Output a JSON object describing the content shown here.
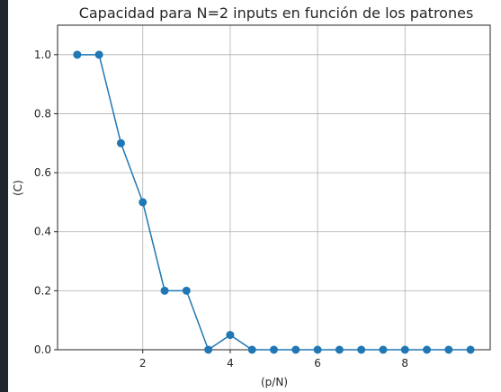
{
  "chart_data": {
    "type": "line",
    "title": "Capacidad para N=2 inputs en función de los patrones",
    "xlabel": "(p/N)",
    "ylabel": "(C)",
    "xlim": [
      0.05,
      9.95
    ],
    "ylim": [
      0,
      1.1
    ],
    "xticks": [
      2,
      4,
      6,
      8
    ],
    "yticks": [
      0.0,
      0.2,
      0.4,
      0.6,
      0.8,
      1.0
    ],
    "ytick_labels": [
      "0.0",
      "0.2",
      "0.4",
      "0.6",
      "0.8",
      "1.0"
    ],
    "grid": true,
    "series": [
      {
        "color": "#1f77b4",
        "marker": "circle",
        "x": [
          0.5,
          1.0,
          1.5,
          2.0,
          2.5,
          3.0,
          3.5,
          4.0,
          4.5,
          5.0,
          5.5,
          6.0,
          6.5,
          7.0,
          7.5,
          8.0,
          8.5,
          9.0,
          9.5
        ],
        "y": [
          1.0,
          1.0,
          0.7,
          0.5,
          0.2,
          0.2,
          0.0,
          0.05,
          0.0,
          0.0,
          0.0,
          0.0,
          0.0,
          0.0,
          0.0,
          0.0,
          0.0,
          0.0,
          0.0
        ]
      }
    ]
  }
}
